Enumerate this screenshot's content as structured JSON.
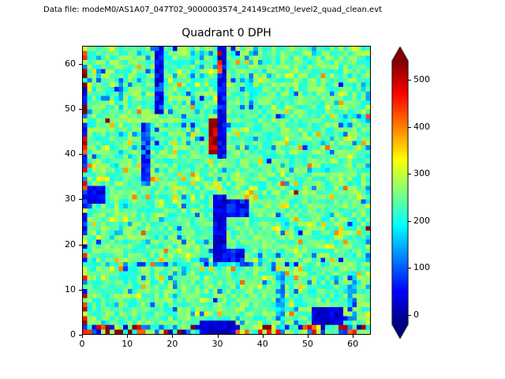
{
  "header": {
    "datafile_label": "Data file: modeM0/AS1A07_047T02_9000003574_24149cztM0_level2_quad_clean.evt"
  },
  "chart_data": {
    "type": "heatmap",
    "title": "Quadrant 0 DPH",
    "xlim": [
      0,
      64
    ],
    "ylim": [
      0,
      64
    ],
    "x_ticks": [
      0,
      10,
      20,
      30,
      40,
      50,
      60
    ],
    "y_ticks": [
      0,
      10,
      20,
      30,
      40,
      50,
      60
    ],
    "grid_size": [
      64,
      64
    ],
    "colormap": "jet",
    "vmin": -20,
    "vmax": 540,
    "colorbar_ticks": [
      0,
      100,
      200,
      300,
      400,
      500
    ],
    "colorbar_extend": "both",
    "legend_position": "right",
    "grid": false,
    "background_value_range": [
      195,
      290
    ],
    "noise_seed": 42,
    "features": [
      {
        "x": 0,
        "y": 0,
        "w": 1,
        "h": 64,
        "mode": "mixed"
      },
      {
        "x": 0,
        "y": 0,
        "w": 64,
        "h": 2,
        "mode": "mixed",
        "density": 0.8
      },
      {
        "x": 0,
        "y": 62,
        "w": 64,
        "h": 2,
        "value": 240,
        "jitter": 90,
        "density": 0.35
      },
      {
        "x": 63,
        "y": 0,
        "w": 1,
        "h": 64,
        "value": 220,
        "jitter": 110,
        "density": 0.5
      },
      {
        "x": 2,
        "y": 15,
        "w": 47,
        "h": 1,
        "value": 120,
        "jitter": 80,
        "density": 0.55
      },
      {
        "x": 16,
        "y": 49,
        "w": 2,
        "h": 15,
        "value": 60,
        "jitter": 55
      },
      {
        "x": 13,
        "y": 33,
        "w": 2,
        "h": 14,
        "value": 85,
        "jitter": 60
      },
      {
        "x": 1,
        "y": 29,
        "w": 4,
        "h": 4,
        "value": 35,
        "jitter": 35
      },
      {
        "x": 30,
        "y": 39,
        "w": 2,
        "h": 25,
        "value": 45,
        "jitter": 45
      },
      {
        "x": 28,
        "y": 40,
        "w": 2,
        "h": 8,
        "value": 510,
        "jitter": 40
      },
      {
        "x": 30,
        "y": 57,
        "w": 1,
        "h": 6,
        "value": 470,
        "jitter": 60,
        "density": 0.7
      },
      {
        "x": 29,
        "y": 16,
        "w": 3,
        "h": 15,
        "value": 35,
        "jitter": 35
      },
      {
        "x": 31,
        "y": 26,
        "w": 6,
        "h": 4,
        "value": 50,
        "jitter": 45
      },
      {
        "x": 31,
        "y": 16,
        "w": 5,
        "h": 3,
        "value": 50,
        "jitter": 45
      },
      {
        "x": 35,
        "y": 30,
        "w": 4,
        "h": 3,
        "value": 360,
        "jitter": 60,
        "density": 0.6
      },
      {
        "x": 26,
        "y": 0,
        "w": 8,
        "h": 3,
        "value": 25,
        "jitter": 25
      },
      {
        "x": 51,
        "y": 2,
        "w": 7,
        "h": 4,
        "value": 28,
        "jitter": 30
      },
      {
        "x": 20,
        "y": 1,
        "w": 1,
        "h": 13,
        "value": 140,
        "jitter": 60,
        "density": 0.8
      },
      {
        "x": 43,
        "y": 1,
        "w": 2,
        "h": 13,
        "value": 150,
        "jitter": 60,
        "density": 0.7
      },
      {
        "x": 59,
        "y": 3,
        "w": 2,
        "h": 11,
        "value": 125,
        "jitter": 60,
        "density": 0.7
      },
      {
        "x": 24,
        "y": 50,
        "w": 1,
        "h": 12,
        "value": 150,
        "jitter": 60,
        "density": 0.75
      },
      {
        "x": 37,
        "y": 50,
        "w": 1,
        "h": 13,
        "value": 135,
        "jitter": 60,
        "density": 0.75
      },
      {
        "x": 8,
        "y": 52,
        "w": 1,
        "h": 5,
        "value": 130,
        "jitter": 50
      },
      {
        "x": 3,
        "y": 56,
        "w": 1,
        "h": 6,
        "value": 145,
        "jitter": 50,
        "density": 0.8
      },
      {
        "x": 5,
        "y": 47,
        "w": 1,
        "h": 1,
        "value": 540
      },
      {
        "x": 47,
        "y": 31,
        "w": 1,
        "h": 1,
        "value": 520
      },
      {
        "x": 63,
        "y": 23,
        "w": 1,
        "h": 1,
        "value": 530
      },
      {
        "x": 10,
        "y": 0,
        "w": 1,
        "h": 1,
        "value": 545
      }
    ]
  }
}
